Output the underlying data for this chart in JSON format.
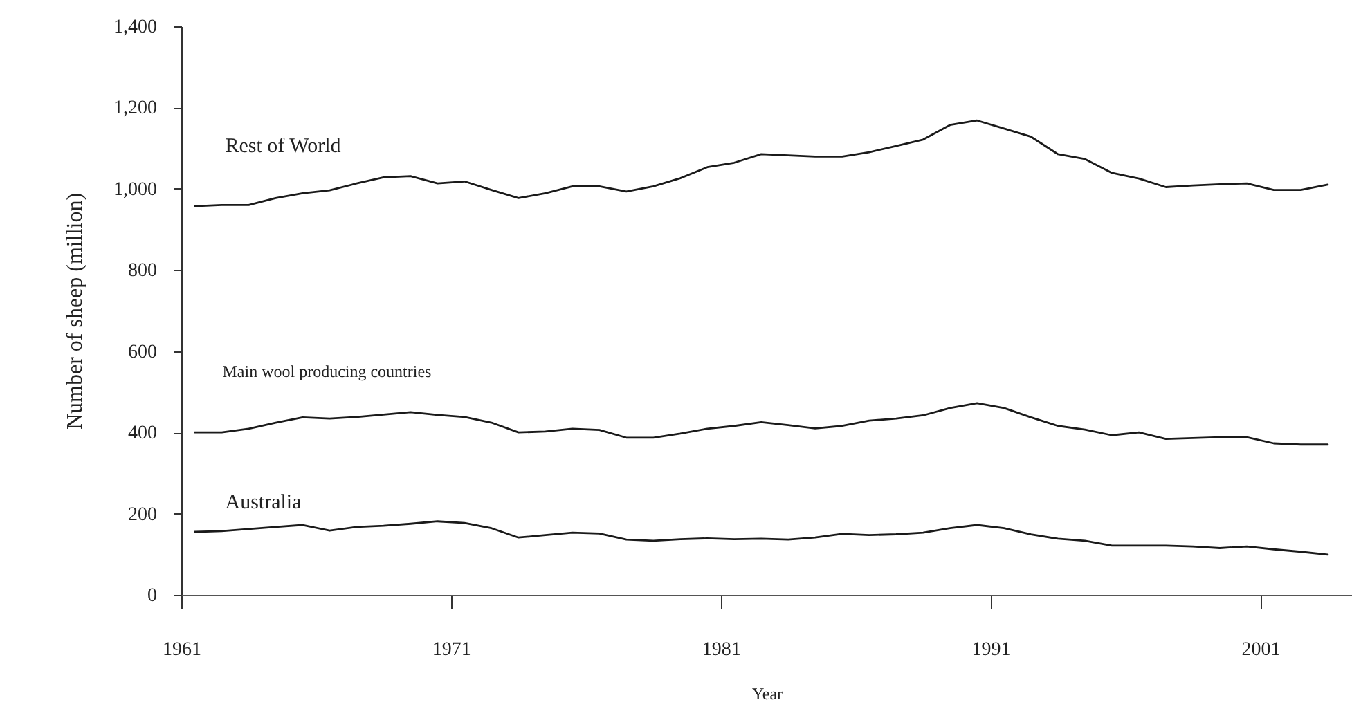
{
  "chart_data": {
    "type": "line",
    "xlabel": "Year",
    "ylabel": "Number of sheep (million)",
    "x": [
      1961,
      1962,
      1963,
      1964,
      1965,
      1966,
      1967,
      1968,
      1969,
      1970,
      1971,
      1972,
      1973,
      1974,
      1975,
      1976,
      1977,
      1978,
      1979,
      1980,
      1981,
      1982,
      1983,
      1984,
      1985,
      1986,
      1987,
      1988,
      1989,
      1990,
      1991,
      1992,
      1993,
      1994,
      1995,
      1996,
      1997,
      1998,
      1999,
      2000,
      2001,
      2002,
      2003
    ],
    "xlim": [
      1960.5,
      2003.9
    ],
    "xticks": [
      {
        "value": 1960.5,
        "label": "1961"
      },
      {
        "value": 1970.5,
        "label": "1971"
      },
      {
        "value": 1980.5,
        "label": "1981"
      },
      {
        "value": 1990.5,
        "label": "1991"
      },
      {
        "value": 2000.5,
        "label": "2001"
      }
    ],
    "ylim": [
      0,
      1400
    ],
    "yticks": [
      0,
      200,
      400,
      600,
      800,
      {
        "value": 1000,
        "label": "1,000"
      },
      {
        "value": 1200,
        "label": "1,200"
      },
      {
        "value": 1400,
        "label": "1,400"
      }
    ],
    "series": [
      {
        "name": "Rest of World",
        "color": "#1a1a1a",
        "values": [
          957,
          960,
          960,
          977,
          989,
          996,
          1013,
          1028,
          1031,
          1013,
          1018,
          997,
          977,
          989,
          1006,
          1006,
          993,
          1006,
          1026,
          1053,
          1064,
          1085,
          1082,
          1079,
          1079,
          1090,
          1105,
          1121,
          1157,
          1168,
          1148,
          1128,
          1085,
          1073,
          1039,
          1025,
          1004,
          1008,
          1011,
          1013,
          997,
          997,
          1010
        ]
      },
      {
        "name": "Main wool producing countries",
        "color": "#1a1a1a",
        "values": [
          400,
          400,
          409,
          424,
          437,
          434,
          438,
          444,
          450,
          443,
          438,
          424,
          400,
          402,
          409,
          406,
          387,
          387,
          397,
          409,
          416,
          425,
          418,
          410,
          416,
          429,
          434,
          442,
          460,
          472,
          460,
          437,
          416,
          407,
          393,
          400,
          384,
          386,
          388,
          388,
          373,
          370,
          370
        ]
      },
      {
        "name": "Australia",
        "color": "#1a1a1a",
        "values": [
          155,
          157,
          162,
          167,
          172,
          158,
          167,
          170,
          175,
          181,
          177,
          164,
          141,
          147,
          153,
          151,
          136,
          133,
          137,
          139,
          137,
          138,
          136,
          141,
          150,
          147,
          149,
          153,
          164,
          172,
          164,
          149,
          138,
          133,
          121,
          121,
          121,
          119,
          115,
          119,
          112,
          106,
          99
        ]
      }
    ],
    "legend": false,
    "grid": false,
    "marker": "none",
    "line_style": "solid"
  }
}
